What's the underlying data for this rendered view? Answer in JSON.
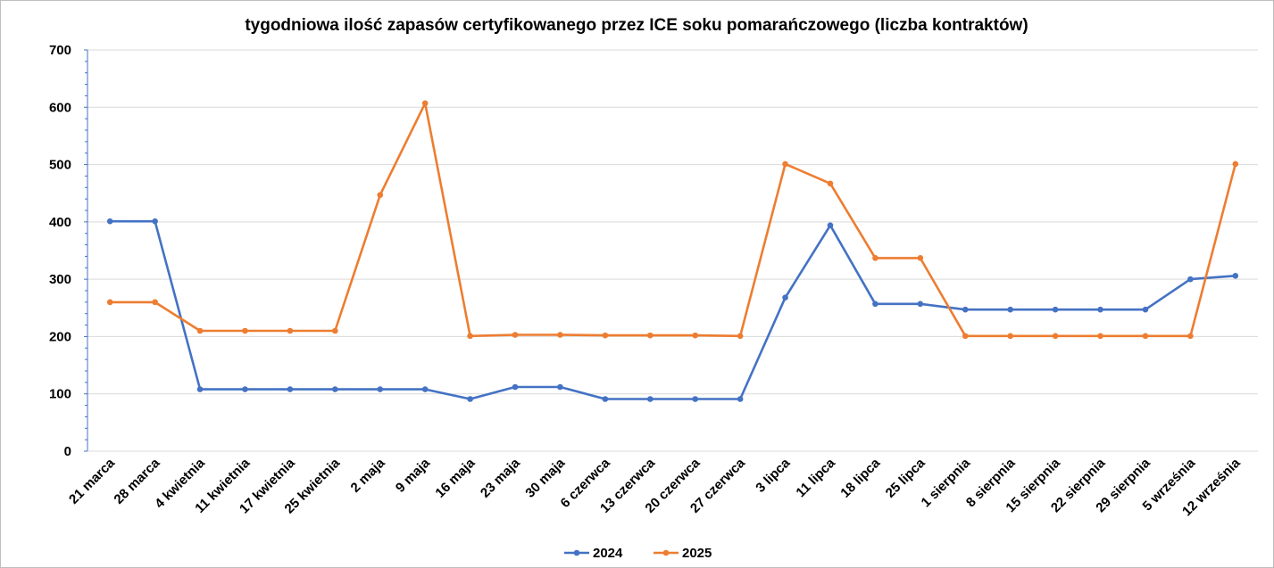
{
  "chart_data": {
    "type": "line",
    "title": "tygodniowa ilość zapasów certyfikowanego przez ICE soku pomarańczowego (liczba kontraktów)",
    "xlabel": "",
    "ylabel": "",
    "ylim": [
      0,
      700
    ],
    "yticks": [
      0,
      100,
      200,
      300,
      400,
      500,
      600,
      700
    ],
    "grid": true,
    "legend_position": "bottom",
    "categories": [
      "21 marca",
      "28 marca",
      "4 kwietnia",
      "11 kwietnia",
      "17 kwietnia",
      "25 kwietnia",
      "2 maja",
      "9 maja",
      "16 maja",
      "23 maja",
      "30 maja",
      "6 czerwca",
      "13 czerwca",
      "20 czerwca",
      "27 czerwca",
      "3 lipca",
      "11 lipca",
      "18 lipca",
      "25 lipca",
      "1 sierpnia",
      "8 sierpnia",
      "15 sierpnia",
      "22 sierpnia",
      "29 sierpnia",
      "5 września",
      "12 września"
    ],
    "series": [
      {
        "name": "2024",
        "color": "#4472C4",
        "values": [
          401,
          401,
          108,
          108,
          108,
          108,
          108,
          108,
          91,
          112,
          112,
          91,
          91,
          91,
          91,
          268,
          394,
          257,
          257,
          247,
          247,
          247,
          247,
          247,
          300,
          306
        ]
      },
      {
        "name": "2025",
        "color": "#ED7D31",
        "values": [
          260,
          260,
          210,
          210,
          210,
          210,
          447,
          607,
          201,
          203,
          203,
          202,
          202,
          202,
          201,
          501,
          467,
          337,
          337,
          201,
          201,
          201,
          201,
          201,
          201,
          501
        ]
      }
    ]
  }
}
